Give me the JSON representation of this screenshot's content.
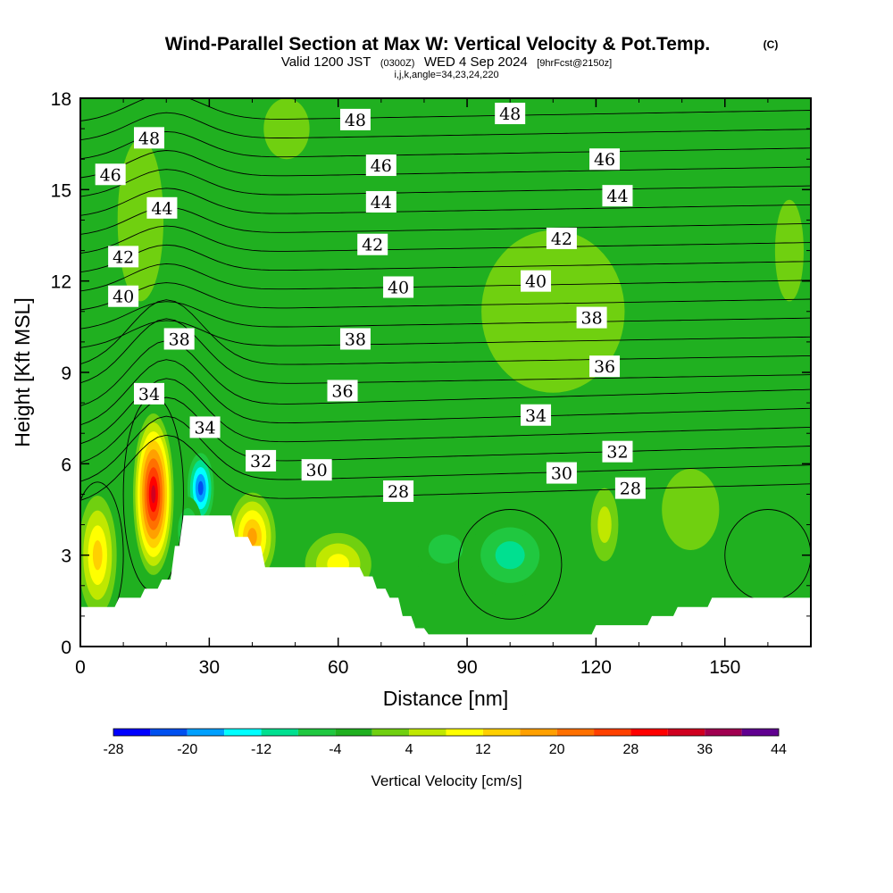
{
  "title": {
    "main": "Wind-Parallel Section at Max W: Vertical Velocity & Pot.Temp.",
    "copyright": "(C)",
    "valid_prefix": "Valid 1200 JST",
    "valid_zulu": "(0300Z)",
    "valid_date": "WED 4 Sep 2024",
    "forecast": "[9hrFcst@2150z]",
    "section_params": "i,j,k,angle=34,23,24,220"
  },
  "chart_data": {
    "type": "heatmap",
    "xlabel": "Distance [nm]",
    "ylabel": "Height [Kft MSL]",
    "xlim": [
      0,
      170
    ],
    "ylim": [
      0,
      18
    ],
    "x_ticks": [
      0,
      30,
      60,
      90,
      120,
      150
    ],
    "y_ticks": [
      0,
      3,
      6,
      9,
      12,
      15,
      18
    ],
    "background_value": -2,
    "colorbar": {
      "title": "Vertical Velocity [cm/s]",
      "tick_labels": [
        -28,
        -20,
        -12,
        -4,
        4,
        12,
        20,
        28,
        36,
        44
      ],
      "bins": [
        {
          "min": -28,
          "max": -24,
          "color": "#0000ff"
        },
        {
          "min": -24,
          "max": -20,
          "color": "#0050f0"
        },
        {
          "min": -20,
          "max": -16,
          "color": "#00a0ff"
        },
        {
          "min": -16,
          "max": -12,
          "color": "#00ffff"
        },
        {
          "min": -12,
          "max": -8,
          "color": "#00e090"
        },
        {
          "min": -8,
          "max": -4,
          "color": "#20c840"
        },
        {
          "min": -4,
          "max": 0,
          "color": "#20b020"
        },
        {
          "min": 0,
          "max": 4,
          "color": "#70d010"
        },
        {
          "min": 4,
          "max": 8,
          "color": "#c0e800"
        },
        {
          "min": 8,
          "max": 12,
          "color": "#ffff00"
        },
        {
          "min": 12,
          "max": 16,
          "color": "#ffd000"
        },
        {
          "min": 16,
          "max": 20,
          "color": "#ffa000"
        },
        {
          "min": 20,
          "max": 24,
          "color": "#ff7000"
        },
        {
          "min": 24,
          "max": 28,
          "color": "#ff4000"
        },
        {
          "min": 28,
          "max": 32,
          "color": "#ff0000"
        },
        {
          "min": 32,
          "max": 36,
          "color": "#d00020"
        },
        {
          "min": 36,
          "max": 40,
          "color": "#a00050"
        },
        {
          "min": 40,
          "max": 44,
          "color": "#600090"
        }
      ]
    },
    "vertical_velocity_features": [
      {
        "x": 17,
        "y": 5.0,
        "rx": 5,
        "ry": 2.8,
        "peak": 34
      },
      {
        "x": 4,
        "y": 3.0,
        "rx": 5,
        "ry": 2.2,
        "peak": 14
      },
      {
        "x": 28,
        "y": 5.2,
        "rx": 4,
        "ry": 1.5,
        "peak": -27
      },
      {
        "x": 25,
        "y": 3.8,
        "rx": 4,
        "ry": 1.3,
        "peak": -16
      },
      {
        "x": 40,
        "y": 3.6,
        "rx": 6,
        "ry": 1.6,
        "peak": 18
      },
      {
        "x": 60,
        "y": 2.7,
        "rx": 9,
        "ry": 1.2,
        "peak": 12
      },
      {
        "x": 100,
        "y": 3.0,
        "rx": 12,
        "ry": 1.6,
        "peak": -14
      },
      {
        "x": 85,
        "y": 3.2,
        "rx": 10,
        "ry": 1.2,
        "peak": -10
      },
      {
        "x": 110,
        "y": 11.0,
        "rx": 25,
        "ry": 4.0,
        "peak": 3
      },
      {
        "x": 122,
        "y": 4.0,
        "rx": 4,
        "ry": 1.5,
        "peak": 6
      },
      {
        "x": 142,
        "y": 4.5,
        "rx": 10,
        "ry": 2.0,
        "peak": 3
      },
      {
        "x": 14,
        "y": 14.0,
        "rx": 8,
        "ry": 4.0,
        "peak": 2
      },
      {
        "x": 48,
        "y": 17.0,
        "rx": 8,
        "ry": 1.5,
        "peak": 2
      },
      {
        "x": 165,
        "y": 13.0,
        "rx": 5,
        "ry": 2.5,
        "peak": 2
      }
    ],
    "terrain": [
      [
        0,
        1.3
      ],
      [
        8,
        1.3
      ],
      [
        9,
        1.6
      ],
      [
        14,
        1.6
      ],
      [
        15,
        1.9
      ],
      [
        18,
        1.9
      ],
      [
        19,
        2.2
      ],
      [
        21,
        2.2
      ],
      [
        22,
        3.3
      ],
      [
        23,
        3.3
      ],
      [
        24,
        4.3
      ],
      [
        35,
        4.3
      ],
      [
        36,
        3.6
      ],
      [
        39,
        3.6
      ],
      [
        40,
        3.3
      ],
      [
        42,
        3.3
      ],
      [
        43,
        2.6
      ],
      [
        65,
        2.6
      ],
      [
        66,
        2.3
      ],
      [
        68,
        2.3
      ],
      [
        69,
        1.9
      ],
      [
        71,
        1.9
      ],
      [
        72,
        1.6
      ],
      [
        74,
        1.6
      ],
      [
        75,
        1.0
      ],
      [
        77,
        1.0
      ],
      [
        78,
        0.6
      ],
      [
        80,
        0.6
      ],
      [
        81,
        0.4
      ],
      [
        119,
        0.4
      ],
      [
        120,
        0.7
      ],
      [
        132,
        0.7
      ],
      [
        133,
        1.0
      ],
      [
        138,
        1.0
      ],
      [
        139,
        1.3
      ],
      [
        146,
        1.3
      ],
      [
        147,
        1.6
      ],
      [
        170,
        1.6
      ]
    ],
    "theta_contours": {
      "levels": [
        28,
        29,
        30,
        31,
        32,
        33,
        34,
        35,
        36,
        37,
        38,
        39,
        40,
        41,
        42,
        43,
        44,
        45,
        46,
        47,
        48
      ],
      "labels": [
        {
          "value": "48",
          "x": 16,
          "y": 16.7
        },
        {
          "value": "48",
          "x": 64,
          "y": 17.3
        },
        {
          "value": "48",
          "x": 100,
          "y": 17.5
        },
        {
          "value": "46",
          "x": 7,
          "y": 15.5
        },
        {
          "value": "46",
          "x": 70,
          "y": 15.8
        },
        {
          "value": "46",
          "x": 122,
          "y": 16.0
        },
        {
          "value": "44",
          "x": 19,
          "y": 14.4
        },
        {
          "value": "44",
          "x": 70,
          "y": 14.6
        },
        {
          "value": "44",
          "x": 125,
          "y": 14.8
        },
        {
          "value": "42",
          "x": 10,
          "y": 12.8
        },
        {
          "value": "42",
          "x": 68,
          "y": 13.2
        },
        {
          "value": "42",
          "x": 112,
          "y": 13.4
        },
        {
          "value": "40",
          "x": 10,
          "y": 11.5
        },
        {
          "value": "40",
          "x": 74,
          "y": 11.8
        },
        {
          "value": "40",
          "x": 106,
          "y": 12.0
        },
        {
          "value": "38",
          "x": 23,
          "y": 10.1
        },
        {
          "value": "38",
          "x": 64,
          "y": 10.1
        },
        {
          "value": "38",
          "x": 119,
          "y": 10.8
        },
        {
          "value": "36",
          "x": 61,
          "y": 8.4
        },
        {
          "value": "36",
          "x": 122,
          "y": 9.2
        },
        {
          "value": "34",
          "x": 16,
          "y": 8.3
        },
        {
          "value": "34",
          "x": 29,
          "y": 7.2
        },
        {
          "value": "34",
          "x": 106,
          "y": 7.6
        },
        {
          "value": "32",
          "x": 42,
          "y": 6.1
        },
        {
          "value": "32",
          "x": 125,
          "y": 6.4
        },
        {
          "value": "30",
          "x": 55,
          "y": 5.8
        },
        {
          "value": "30",
          "x": 112,
          "y": 5.7
        },
        {
          "value": "28",
          "x": 74,
          "y": 5.1
        },
        {
          "value": "28",
          "x": 128,
          "y": 5.2
        }
      ]
    }
  }
}
